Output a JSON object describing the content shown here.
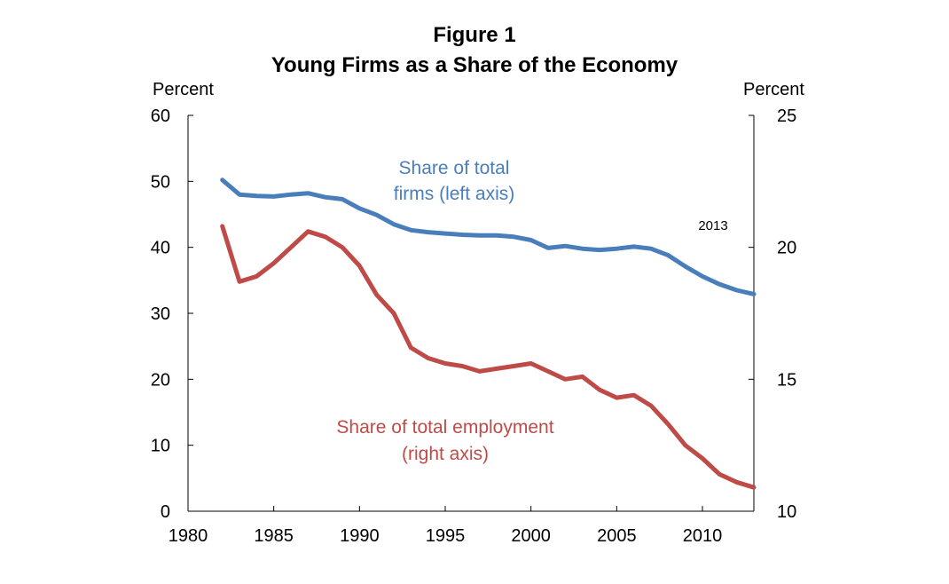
{
  "chart_data": {
    "type": "line",
    "title": "Figure 1",
    "subtitle": "Young Firms as a Share of the Economy",
    "ylabel_left": "Percent",
    "ylabel_right": "Percent",
    "x": [
      1982,
      1983,
      1984,
      1985,
      1986,
      1987,
      1988,
      1989,
      1990,
      1991,
      1992,
      1993,
      1994,
      1995,
      1996,
      1997,
      1998,
      1999,
      2000,
      2001,
      2002,
      2003,
      2004,
      2005,
      2006,
      2007,
      2008,
      2009,
      2010,
      2011,
      2012,
      2013
    ],
    "xlim": [
      1980,
      2013
    ],
    "xticks": [
      1980,
      1985,
      1990,
      1995,
      2000,
      2005,
      2010
    ],
    "ylim_left": [
      0,
      60
    ],
    "yticks_left": [
      0,
      10,
      20,
      30,
      40,
      50,
      60
    ],
    "ylim_right": [
      10,
      25
    ],
    "yticks_right": [
      10,
      15,
      20,
      25
    ],
    "series": [
      {
        "name": "Share of total firms (left axis)",
        "label_line1": "Share of total",
        "label_line2": "firms (left axis)",
        "axis": "left",
        "color": "#4a7ebb",
        "values": [
          50.2,
          48.0,
          47.8,
          47.7,
          48.0,
          48.2,
          47.6,
          47.3,
          45.9,
          44.9,
          43.5,
          42.6,
          42.3,
          42.1,
          41.9,
          41.8,
          41.8,
          41.6,
          41.1,
          39.9,
          40.2,
          39.8,
          39.6,
          39.8,
          40.1,
          39.8,
          38.8,
          37.1,
          35.6,
          34.4,
          33.5,
          32.9
        ]
      },
      {
        "name": "Share of total employment (right axis)",
        "label_line1": "Share of total employment",
        "label_line2": "(right axis)",
        "axis": "right",
        "color": "#be4b48",
        "values": [
          20.8,
          18.7,
          18.9,
          19.4,
          20.0,
          20.6,
          20.4,
          20.0,
          19.3,
          18.2,
          17.5,
          16.2,
          15.8,
          15.6,
          15.5,
          15.3,
          15.4,
          15.5,
          15.6,
          15.3,
          15.0,
          15.1,
          14.6,
          14.3,
          14.4,
          14.0,
          13.3,
          12.5,
          12.0,
          11.4,
          11.1,
          10.9
        ]
      }
    ],
    "annotation": "2013"
  }
}
